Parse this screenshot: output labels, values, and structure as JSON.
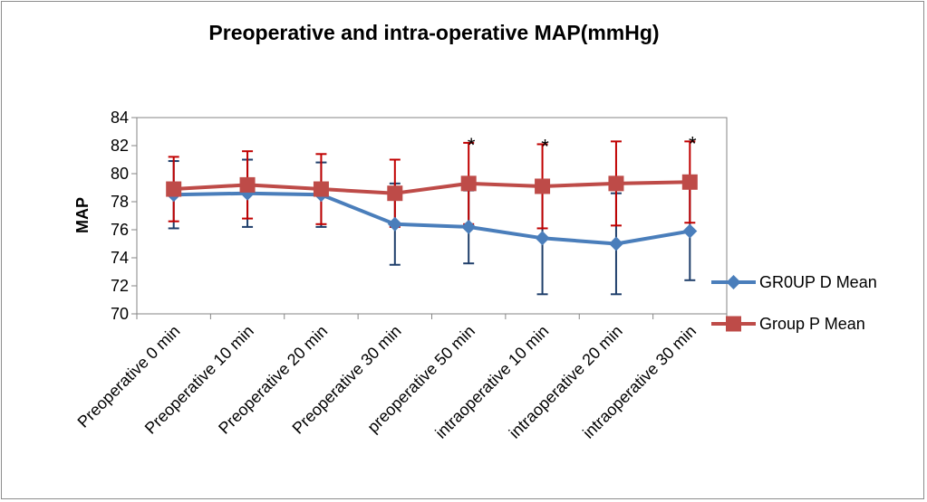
{
  "chart_data": {
    "type": "line",
    "title": "Preoperative and intra-operative MAP(mmHg)",
    "xlabel": "",
    "ylabel": "MAP",
    "ylim": [
      70,
      84
    ],
    "yticks": [
      70,
      72,
      74,
      76,
      78,
      80,
      82,
      84
    ],
    "grid": false,
    "legend_position": "right",
    "categories": [
      "Preoperative 0 min",
      "Preoperative 10 min",
      "Preoperative 20 min",
      "Preoperative 30 min",
      "preoperative 50 min",
      "intraoperative 10 min",
      "intraoperative 20 min",
      "intraoperative 30 min"
    ],
    "series": [
      {
        "name": "GR0UP D Mean",
        "color": "#4a7ebb",
        "error_color": "#1f3f6b",
        "marker": "diamond",
        "values": [
          78.5,
          78.6,
          78.5,
          76.4,
          76.2,
          75.4,
          75.0,
          75.9
        ],
        "error": [
          2.4,
          2.4,
          2.3,
          2.9,
          2.6,
          4.0,
          3.6,
          3.5
        ]
      },
      {
        "name": "Group P Mean",
        "color": "#be4b48",
        "error_color": "#c00000",
        "marker": "square",
        "values": [
          78.9,
          79.2,
          78.9,
          78.6,
          79.3,
          79.1,
          79.3,
          79.4
        ],
        "error": [
          2.3,
          2.4,
          2.5,
          2.4,
          2.9,
          3.0,
          3.0,
          2.9
        ]
      }
    ],
    "annotations": [
      {
        "category_index": 4,
        "text": "*"
      },
      {
        "category_index": 5,
        "text": "*"
      },
      {
        "category_index": 7,
        "text": "*"
      }
    ]
  }
}
